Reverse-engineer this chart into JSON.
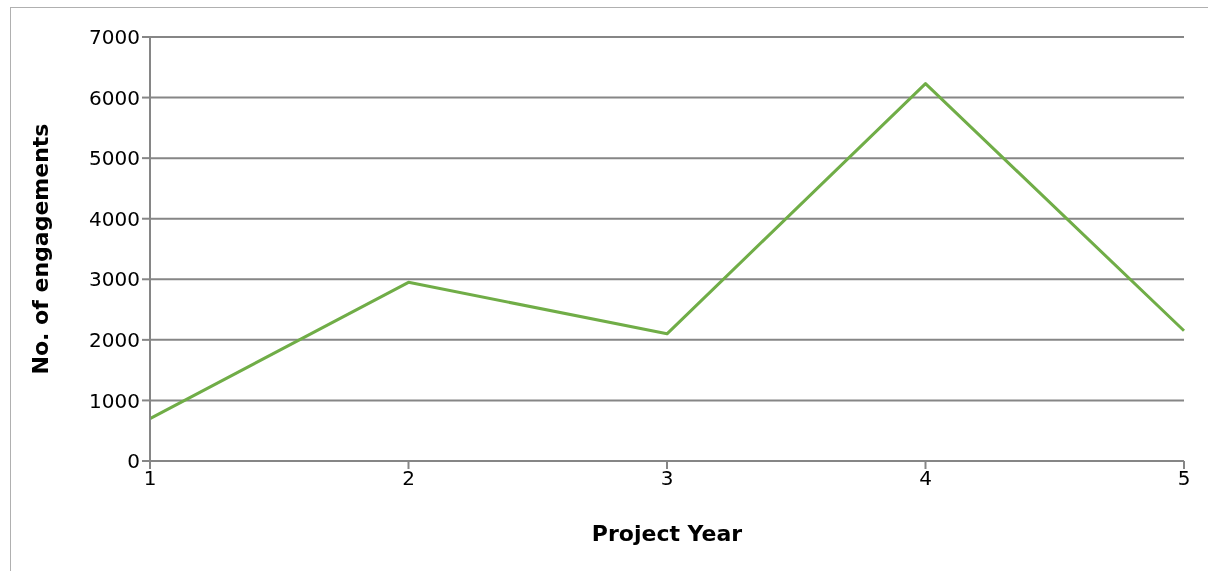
{
  "chart_data": {
    "type": "line",
    "xlabel": "Project Year",
    "ylabel": "No. of engagements",
    "categories": [
      "1",
      "2",
      "3",
      "4",
      "5"
    ],
    "series": [
      {
        "color": "#70ad47",
        "values": [
          700,
          2950,
          2100,
          6230,
          2150
        ]
      }
    ],
    "ylim": [
      0,
      7000
    ],
    "yticks": [
      0,
      1000,
      2000,
      3000,
      4000,
      5000,
      6000,
      7000
    ],
    "grid": "y",
    "legend": false,
    "marker": "none",
    "line_style": "solid"
  }
}
